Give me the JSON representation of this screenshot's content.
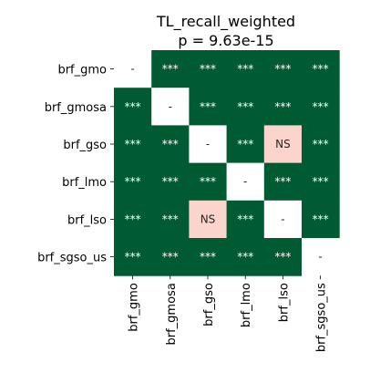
{
  "chart_data": {
    "type": "heatmap",
    "title": "TL_recall_weighted",
    "subtitle": "p = 9.63e-15",
    "xlabel": "",
    "ylabel": "",
    "rows": [
      "brf_gmo",
      "brf_gmosa",
      "brf_gso",
      "brf_lmo",
      "brf_lso",
      "brf_sgso_us"
    ],
    "columns": [
      "brf_gmo",
      "brf_gmosa",
      "brf_gso",
      "brf_lmo",
      "brf_lso",
      "brf_sgso_us"
    ],
    "cells": [
      [
        "-",
        "***",
        "***",
        "***",
        "***",
        "***"
      ],
      [
        "***",
        "-",
        "***",
        "***",
        "***",
        "***"
      ],
      [
        "***",
        "***",
        "-",
        "***",
        "NS",
        "***"
      ],
      [
        "***",
        "***",
        "***",
        "-",
        "***",
        "***"
      ],
      [
        "***",
        "***",
        "NS",
        "***",
        "-",
        "***"
      ],
      [
        "***",
        "***",
        "***",
        "***",
        "***",
        "-"
      ]
    ],
    "colors": {
      "***": "#005a32",
      "NS": "#fbd5cb",
      "-": "#ffffff"
    },
    "text_colors": {
      "***": "#ffffff",
      "NS": "#262626",
      "-": "#262626"
    },
    "grid": false,
    "legend": "none"
  }
}
